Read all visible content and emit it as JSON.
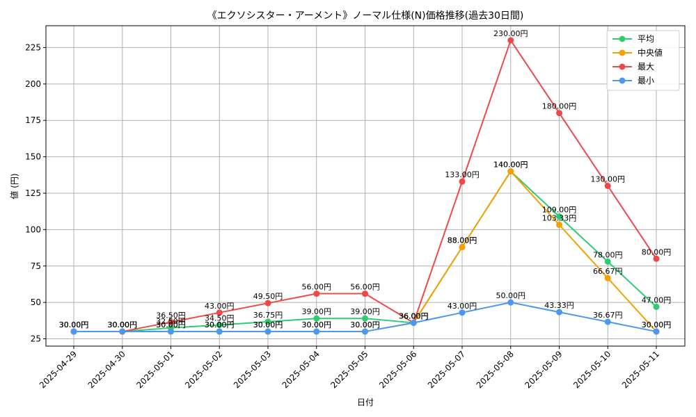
{
  "chart_data": {
    "type": "line",
    "title": "《エクソシスター・アーメント》ノーマル仕様(N)価格推移(過去30日間)",
    "xlabel": "日付",
    "ylabel": "値 (円)",
    "categories": [
      "2025-04-29",
      "2025-04-30",
      "2025-05-01",
      "2025-05-02",
      "2025-05-03",
      "2025-05-04",
      "2025-05-05",
      "2025-05-06",
      "2025-05-07",
      "2025-05-08",
      "2025-05-09",
      "2025-05-10",
      "2025-05-11"
    ],
    "yticks": [
      25,
      50,
      75,
      100,
      125,
      150,
      175,
      200,
      225
    ],
    "ylim": [
      20,
      240
    ],
    "grid": true,
    "legend_position": "top-right",
    "label_suffix": "円",
    "series": [
      {
        "name": "平均",
        "color": "#2ecc71",
        "values": [
          30,
          30,
          32.5,
          34.5,
          36.75,
          39,
          39,
          36,
          88,
          140,
          109,
          78,
          47
        ]
      },
      {
        "name": "中央値",
        "color": "#f5a000",
        "values": [
          30,
          30,
          30,
          30,
          30,
          30,
          30,
          36,
          88,
          140,
          103.33,
          66.67,
          30
        ]
      },
      {
        "name": "最大",
        "color": "#f04848",
        "values": [
          30,
          30,
          36.5,
          43,
          49.5,
          56,
          56,
          36,
          133,
          230,
          180,
          130,
          80
        ]
      },
      {
        "name": "最小",
        "color": "#4a98f0",
        "values": [
          30,
          30,
          30,
          30,
          30,
          30,
          30,
          36,
          43,
          50,
          43.33,
          36.67,
          30
        ]
      }
    ]
  }
}
